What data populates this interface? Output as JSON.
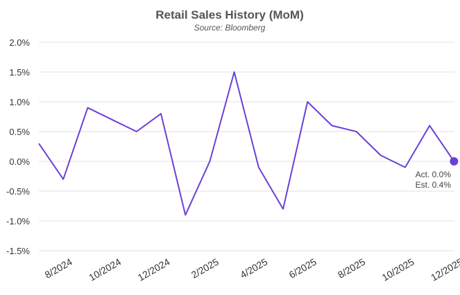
{
  "chart_data": {
    "type": "line",
    "title": "Retail Sales History (MoM)",
    "subtitle": "Source: Bloomberg",
    "xlabel": "",
    "ylabel": "",
    "ylim": [
      -1.5,
      2.0
    ],
    "yticks": [
      "2.0%",
      "1.5%",
      "1.0%",
      "0.5%",
      "0.0%",
      "-0.5%",
      "-1.0%",
      "-1.5%"
    ],
    "ytick_values": [
      2.0,
      1.5,
      1.0,
      0.5,
      0.0,
      -0.5,
      -1.0,
      -1.5
    ],
    "x": [
      "7/2024",
      "8/2024",
      "9/2024",
      "10/2024",
      "11/2024",
      "12/2024",
      "1/2025",
      "2/2025",
      "3/2025",
      "4/2025",
      "5/2025",
      "6/2025",
      "7/2025",
      "8/2025",
      "9/2025",
      "10/2025",
      "11/2025",
      "12/2025"
    ],
    "xtick_labels": [
      "8/2024",
      "10/2024",
      "12/2024",
      "2/2025",
      "4/2025",
      "6/2025",
      "8/2025",
      "10/2025",
      "12/2025"
    ],
    "grid": true,
    "series": [
      {
        "values": [
          0.3,
          -0.3,
          0.9,
          0.7,
          0.5,
          0.8,
          -0.9,
          0.0,
          1.5,
          -0.1,
          -0.8,
          1.0,
          0.6,
          0.5,
          0.1,
          -0.1,
          0.6,
          0.0
        ],
        "color": "#6a3fd9"
      }
    ],
    "annotation": {
      "actual": "Act. 0.0%",
      "estimate": "Est. 0.4%",
      "marker_color": "#6a3fd9"
    }
  }
}
